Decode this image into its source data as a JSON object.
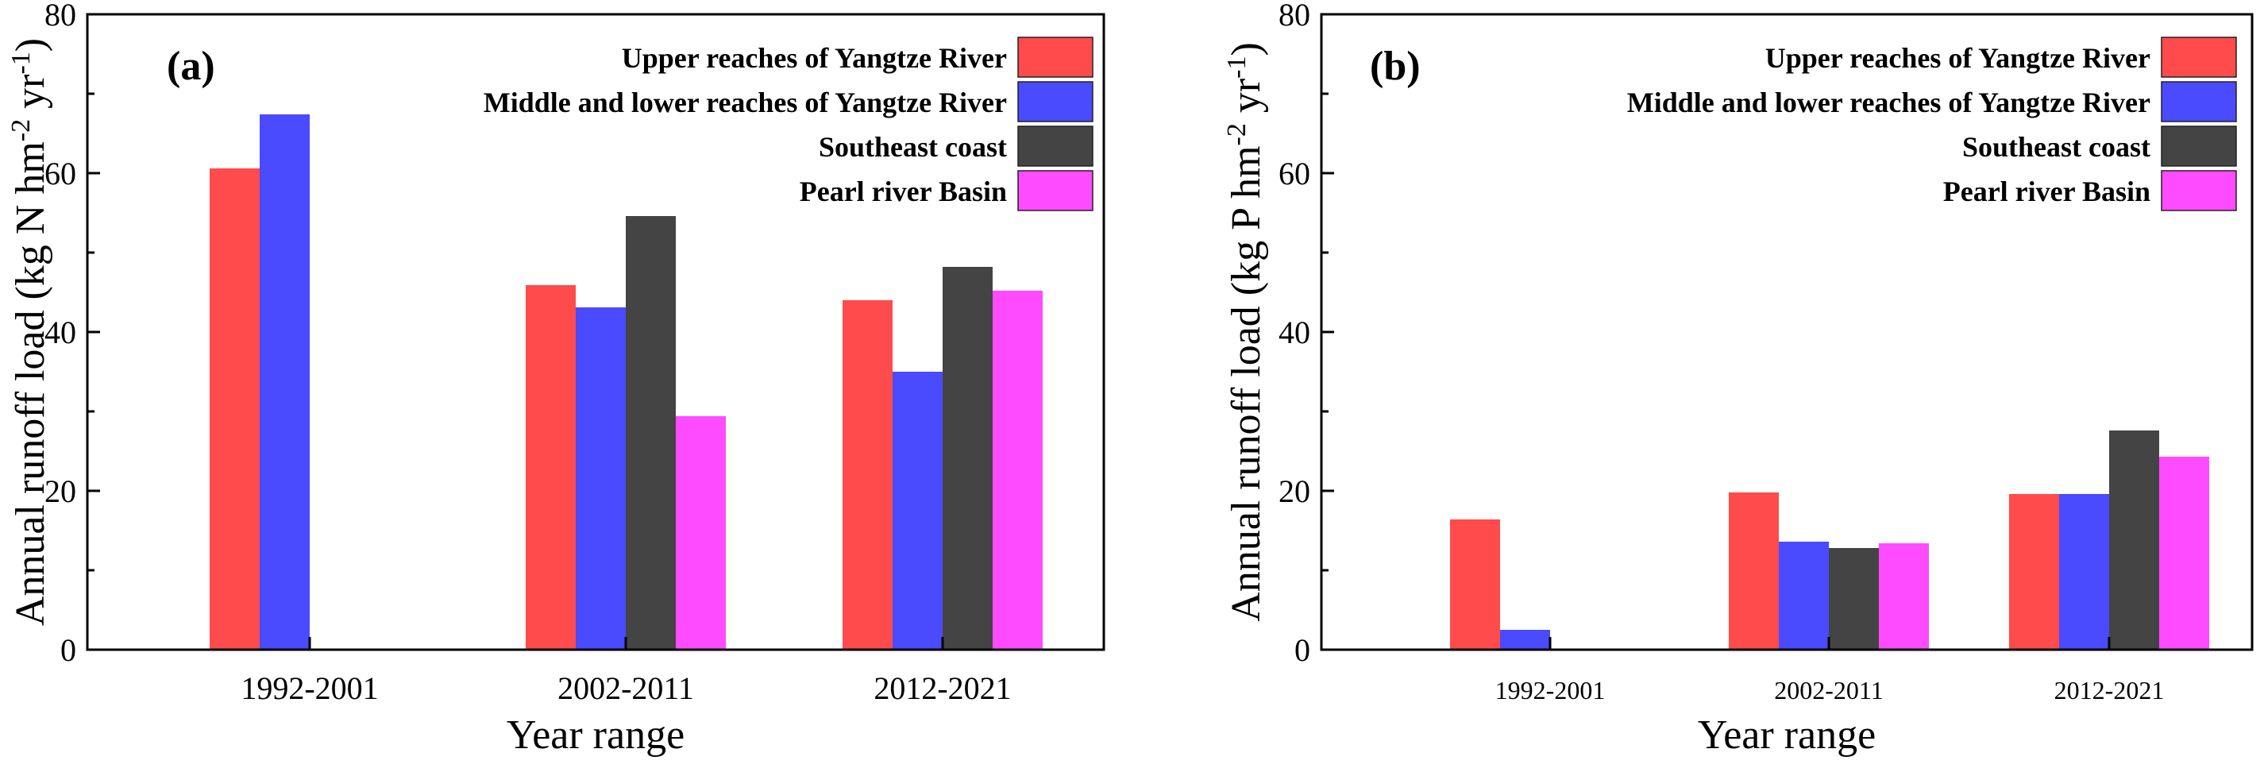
{
  "chart_data": [
    {
      "type": "bar",
      "panel_label": "(a)",
      "categories": [
        "1992-2001",
        "2002-2011",
        "2012-2021"
      ],
      "series": [
        {
          "name": "Upper reaches of Yangtze River",
          "color": "#ff4b4b",
          "values": [
            60.6,
            45.9,
            44.0
          ]
        },
        {
          "name": "Middle and lower reaches of Yangtze River",
          "color": "#4a4aff",
          "values": [
            67.4,
            43.1,
            35.0
          ]
        },
        {
          "name": "Southeast coast",
          "color": "#444444",
          "values": [
            null,
            54.6,
            48.2
          ]
        },
        {
          "name": "Pearl river Basin",
          "color": "#ff4bff",
          "values": [
            null,
            29.4,
            45.2
          ]
        }
      ],
      "xlabel": "Year range",
      "ylabel": {
        "prefix": "Annual runoff load (kg N hm",
        "sup1": "-2",
        "mid": " yr",
        "sup2": "-1",
        "suffix": ")"
      },
      "ylim": [
        0,
        80
      ],
      "yticks": [
        0,
        20,
        40,
        60,
        80
      ],
      "ytick_labels": [
        "0",
        "20",
        "40",
        "60",
        "80"
      ],
      "legend": "top-right",
      "grid": false
    },
    {
      "type": "bar",
      "panel_label": "(b)",
      "categories": [
        "1992-2001",
        "2002-2011",
        "2012-2021"
      ],
      "series": [
        {
          "name": "Upper reaches of Yangtze River",
          "color": "#ff4b4b",
          "values": [
            16.4,
            19.8,
            19.6
          ]
        },
        {
          "name": "Middle and lower reaches of Yangtze River",
          "color": "#4a4aff",
          "values": [
            2.5,
            13.6,
            19.6
          ]
        },
        {
          "name": "Southeast coast",
          "color": "#444444",
          "values": [
            null,
            12.8,
            27.6
          ]
        },
        {
          "name": "Pearl river Basin",
          "color": "#ff4bff",
          "values": [
            null,
            13.4,
            24.3
          ]
        }
      ],
      "xlabel": "Year range",
      "ylabel": {
        "prefix": "Annual runoff load (kg P hm",
        "sup1": "-2",
        "mid": " yr",
        "sup2": "-1",
        "suffix": ")"
      },
      "ylim": [
        0,
        80
      ],
      "yticks": [
        0,
        20,
        40,
        60,
        80
      ],
      "ytick_labels": [
        "0",
        "20",
        "40",
        "60",
        "80"
      ],
      "legend": "top-right",
      "grid": false
    }
  ]
}
